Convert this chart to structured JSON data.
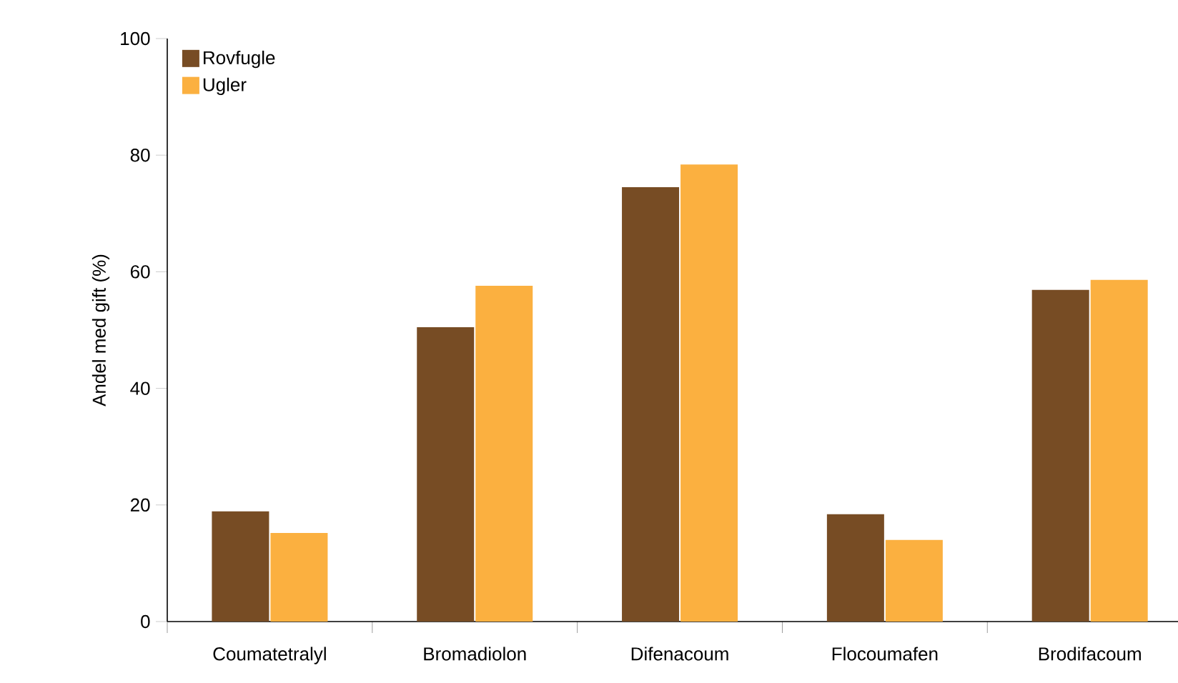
{
  "chart_data": {
    "type": "bar",
    "ylabel": "Andel med gift (%)",
    "categories": [
      "Coumatetralyl",
      "Bromadiolon",
      "Difenacoum",
      "Flocoumafen",
      "Brodifacoum"
    ],
    "series": [
      {
        "name": "Rovfugle",
        "color": "#774c24",
        "values": [
          18.9,
          50.5,
          74.5,
          18.4,
          56.9
        ]
      },
      {
        "name": "Ugler",
        "color": "#fbb040",
        "values": [
          15.2,
          57.6,
          78.4,
          14.0,
          58.6
        ]
      }
    ],
    "ylim": [
      0,
      100
    ],
    "yticks": [
      0,
      20,
      40,
      60,
      80,
      100
    ],
    "legend": "top left",
    "grid": false
  }
}
